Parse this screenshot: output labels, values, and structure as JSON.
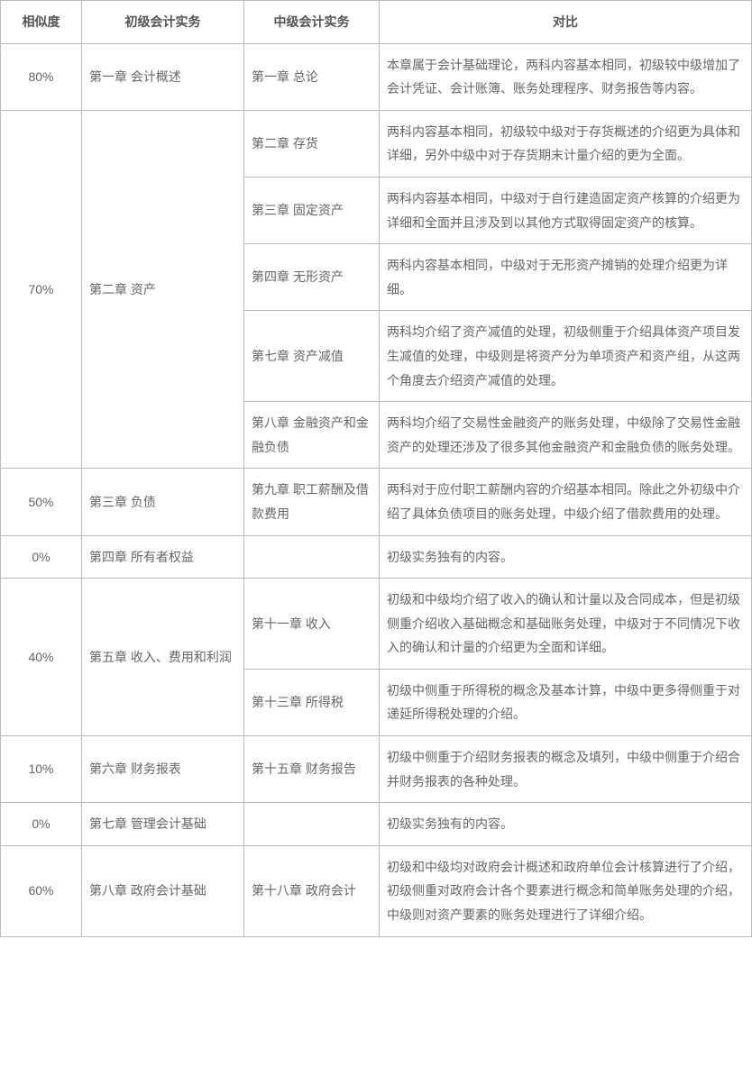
{
  "headers": {
    "similarity": "相似度",
    "primary": "初级会计实务",
    "intermediate": "中级会计实务",
    "compare": "对比"
  },
  "rows": [
    {
      "similarity": "80%",
      "primary": "第一章 会计概述",
      "mids": [
        {
          "mid": "第一章 总论",
          "cmp": "本章属于会计基础理论，两科内容基本相同，初级较中级增加了会计凭证、会计账簿、账务处理程序、财务报告等内容。"
        }
      ]
    },
    {
      "similarity": "70%",
      "primary": "第二章 资产",
      "mids": [
        {
          "mid": "第二章 存货",
          "cmp": "两科内容基本相同，初级较中级对于存货概述的介绍更为具体和详细，另外中级中对于存货期末计量介绍的更为全面。"
        },
        {
          "mid": "第三章 固定资产",
          "cmp": "两科内容基本相同，中级对于自行建造固定资产核算的介绍更为详细和全面并且涉及到以其他方式取得固定资产的核算。"
        },
        {
          "mid": "第四章 无形资产",
          "cmp": "两科内容基本相同，中级对于无形资产摊销的处理介绍更为详细。"
        },
        {
          "mid": "第七章 资产减值",
          "cmp": "两科均介绍了资产减值的处理，初级侧重于介绍具体资产项目发生减值的处理，中级则是将资产分为单项资产和资产组，从这两个角度去介绍资产减值的处理。"
        },
        {
          "mid": "第八章 金融资产和金融负债",
          "cmp": "两科均介绍了交易性金融资产的账务处理，中级除了交易性金融资产的处理还涉及了很多其他金融资产和金融负债的账务处理。"
        }
      ]
    },
    {
      "similarity": "50%",
      "primary": "第三章 负债",
      "mids": [
        {
          "mid": "第九章 职工薪酬及借款费用",
          "cmp": "两科对于应付职工薪酬内容的介绍基本相同。除此之外初级中介绍了具体负债项目的账务处理，中级介绍了借款费用的处理。"
        }
      ]
    },
    {
      "similarity": "0%",
      "primary": "第四章 所有者权益",
      "mids": [
        {
          "mid": "",
          "cmp": "初级实务独有的内容。"
        }
      ]
    },
    {
      "similarity": "40%",
      "primary": "第五章 收入、费用和利润",
      "mids": [
        {
          "mid": "第十一章 收入",
          "cmp": "初级和中级均介绍了收入的确认和计量以及合同成本，但是初级侧重介绍收入基础概念和基础账务处理，中级对于不同情况下收入的确认和计量的介绍更为全面和详细。"
        },
        {
          "mid": "第十三章 所得税",
          "cmp": "初级中侧重于所得税的概念及基本计算，中级中更多得侧重于对递延所得税处理的介绍。"
        }
      ]
    },
    {
      "similarity": "10%",
      "primary": "第六章 财务报表",
      "mids": [
        {
          "mid": "第十五章 财务报告",
          "cmp": "初级中侧重于介绍财务报表的概念及填列，中级中侧重于介绍合并财务报表的各种处理。"
        }
      ]
    },
    {
      "similarity": "0%",
      "primary": "第七章 管理会计基础",
      "mids": [
        {
          "mid": "",
          "cmp": "初级实务独有的内容。"
        }
      ]
    },
    {
      "similarity": "60%",
      "primary": "第八章 政府会计基础",
      "mids": [
        {
          "mid": "第十八章 政府会计",
          "cmp": "初级和中级均对政府会计概述和政府单位会计核算进行了介绍，初级侧重对政府会计各个要素进行概念和简单账务处理的介绍，中级则对资产要素的账务处理进行了详细介绍。"
        }
      ]
    }
  ]
}
